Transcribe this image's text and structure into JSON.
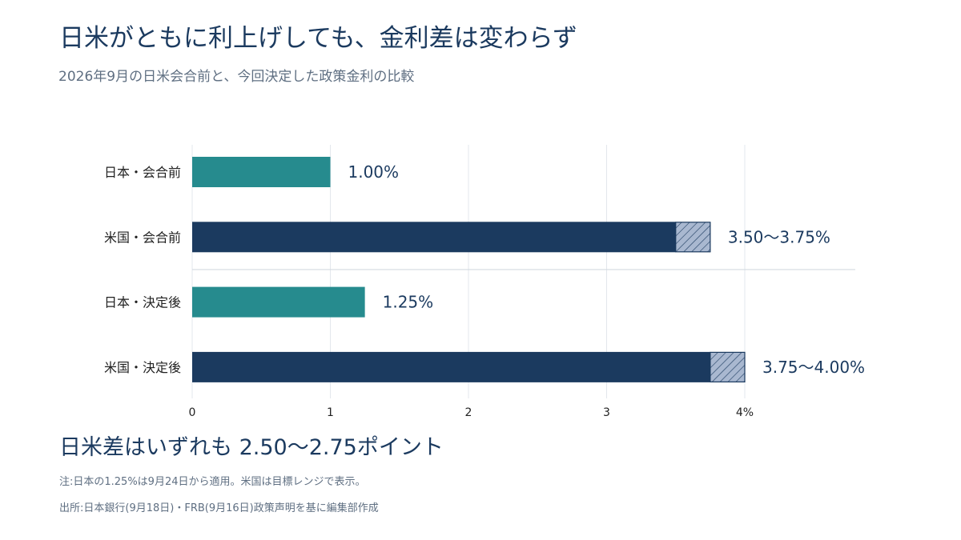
{
  "title": "日米がともに利上げしても、金利差は変わらず",
  "subtitle": "2026年9月の日米会合前と、今回決定した政策金利の比較",
  "summary": "日米差はいずれも 2.50〜2.75ポイント",
  "notes": {
    "note": "注:日本の1.25%は9月24日から適用。米国は目標レンジで表示。",
    "source": "出所:日本銀行(9月18日)・FRB(9月16日)政策声明を基に編集部作成"
  },
  "colors": {
    "japan": "#268b8e",
    "us": "#1b3a5f",
    "range_fill": "#a9b8d0",
    "label": "#1b3a5f",
    "grid": "#e3e7ec"
  },
  "chart_data": {
    "type": "bar",
    "orientation": "horizontal",
    "categories": [
      "日本・会合前",
      "米国・会合前",
      "日本・決定後",
      "米国・決定後"
    ],
    "series": [
      {
        "values": [
          1.0,
          3.5,
          1.25,
          3.75
        ],
        "range_upper": [
          null,
          3.75,
          null,
          4.0
        ],
        "colors": [
          "japan",
          "us",
          "japan",
          "us"
        ]
      }
    ],
    "value_labels": [
      "1.00%",
      "3.50〜3.75%",
      "1.25%",
      "3.75〜4.00%"
    ],
    "xlim": [
      0,
      4.8
    ],
    "xticks": [
      0,
      1,
      2,
      3,
      4
    ],
    "xtick_labels": [
      "0",
      "1",
      "2",
      "3",
      "4%"
    ],
    "grid": true,
    "separator_after_category": 1,
    "xlabel": "",
    "ylabel": ""
  }
}
